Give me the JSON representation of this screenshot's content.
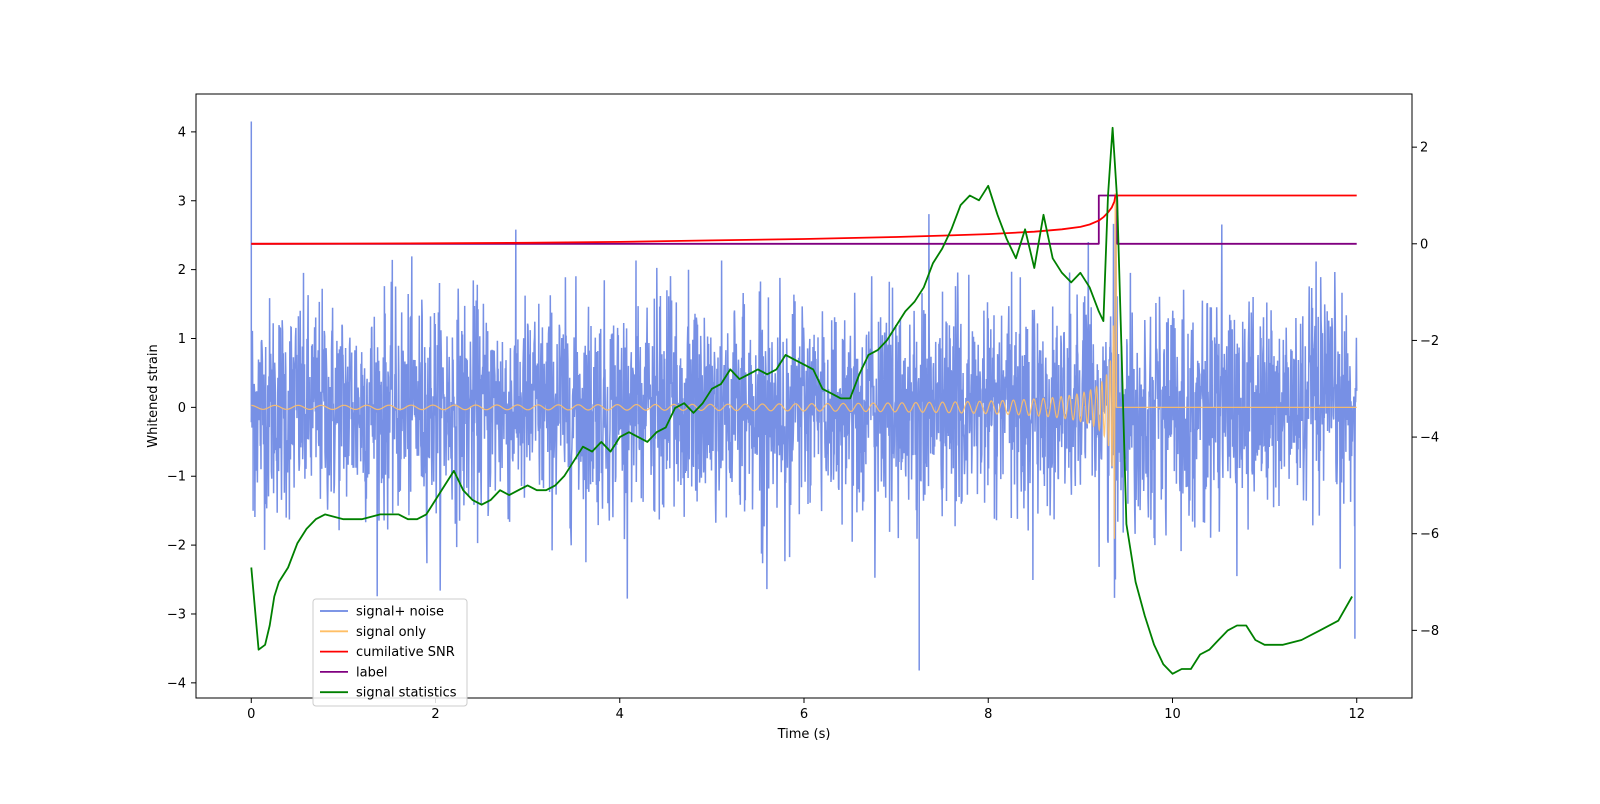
{
  "chart_data": {
    "type": "line",
    "title": "",
    "xlabel": "Time (s)",
    "ylabel": "Whitened strain",
    "y2label": "",
    "xlim": [
      -0.6,
      12.6
    ],
    "ylim": [
      -4.22,
      4.55
    ],
    "y2lim": [
      -9.4,
      3.1
    ],
    "x_ticks": [
      0,
      2,
      4,
      6,
      8,
      10,
      12
    ],
    "y_ticks": [
      -4,
      -3,
      -2,
      -1,
      0,
      1,
      2,
      3,
      4
    ],
    "y2_ticks": [
      -8,
      -6,
      -4,
      -2,
      0,
      2
    ],
    "grid": false,
    "legend_position": "lower-left",
    "colors": {
      "signal_noise": "#6b87e3",
      "signal_only": "#ffbf66",
      "cumulative_snr": "#ff0000",
      "label": "#800080",
      "signal_statistics": "#008000"
    },
    "series": [
      {
        "name": "signal+ noise",
        "axis": "left",
        "description_points": [
          [
            0.0,
            4.15
          ],
          [
            0.02,
            -1.5
          ],
          [
            7.25,
            -3.82
          ],
          [
            9.38,
            -2.5
          ],
          [
            11.98,
            -3.36
          ]
        ],
        "envelope": {
          "x_range": [
            0,
            12
          ],
          "typical_low": -1.9,
          "typical_high": 2.2,
          "sample_rate_hz": 256
        }
      },
      {
        "name": "signal only",
        "axis": "left",
        "chirp": {
          "start": 0,
          "merger_time": 9.38,
          "end": 12,
          "peak_amplitude_high": 3.1,
          "peak_amplitude_low": -2.55
        }
      },
      {
        "name": "cumilative SNR",
        "axis": "right",
        "x": [
          0,
          1,
          2,
          3,
          4,
          5,
          6,
          7,
          7.5,
          8,
          8.5,
          8.8,
          9.0,
          9.1,
          9.2,
          9.25,
          9.3,
          9.34,
          9.37,
          9.38,
          9.4,
          12
        ],
        "values": [
          0,
          0.004,
          0.01,
          0.02,
          0.04,
          0.07,
          0.1,
          0.14,
          0.17,
          0.2,
          0.25,
          0.3,
          0.35,
          0.4,
          0.48,
          0.55,
          0.65,
          0.75,
          0.88,
          1.0,
          1.0,
          1.0
        ]
      },
      {
        "name": "label",
        "axis": "right",
        "x": [
          0,
          9.2,
          9.2,
          9.4,
          9.4,
          12
        ],
        "values": [
          0,
          0,
          1,
          1,
          0,
          0
        ]
      },
      {
        "name": "signal statistics",
        "axis": "right",
        "x": [
          0.0,
          0.08,
          0.15,
          0.2,
          0.25,
          0.3,
          0.4,
          0.5,
          0.6,
          0.7,
          0.8,
          1.0,
          1.2,
          1.4,
          1.6,
          1.7,
          1.8,
          1.9,
          2.0,
          2.1,
          2.2,
          2.3,
          2.4,
          2.5,
          2.6,
          2.7,
          2.8,
          2.9,
          3.0,
          3.1,
          3.2,
          3.3,
          3.4,
          3.5,
          3.6,
          3.7,
          3.8,
          3.9,
          4.0,
          4.1,
          4.2,
          4.3,
          4.4,
          4.5,
          4.6,
          4.7,
          4.8,
          4.9,
          5.0,
          5.1,
          5.2,
          5.3,
          5.4,
          5.5,
          5.6,
          5.7,
          5.8,
          5.9,
          6.0,
          6.1,
          6.2,
          6.3,
          6.4,
          6.5,
          6.6,
          6.7,
          6.8,
          6.9,
          7.0,
          7.1,
          7.2,
          7.3,
          7.4,
          7.5,
          7.6,
          7.7,
          7.8,
          7.9,
          8.0,
          8.1,
          8.2,
          8.3,
          8.4,
          8.5,
          8.6,
          8.7,
          8.8,
          8.9,
          9.0,
          9.1,
          9.2,
          9.25,
          9.3,
          9.35,
          9.4,
          9.45,
          9.5,
          9.6,
          9.7,
          9.8,
          9.9,
          10.0,
          10.1,
          10.2,
          10.3,
          10.4,
          10.5,
          10.6,
          10.7,
          10.8,
          10.9,
          11.0,
          11.2,
          11.4,
          11.6,
          11.8,
          11.95
        ],
        "values": [
          -6.7,
          -8.4,
          -8.3,
          -7.9,
          -7.3,
          -7.0,
          -6.7,
          -6.2,
          -5.9,
          -5.7,
          -5.6,
          -5.7,
          -5.7,
          -5.6,
          -5.6,
          -5.7,
          -5.7,
          -5.6,
          -5.3,
          -5.0,
          -4.7,
          -5.1,
          -5.3,
          -5.4,
          -5.3,
          -5.1,
          -5.2,
          -5.1,
          -5.0,
          -5.1,
          -5.1,
          -5.0,
          -4.8,
          -4.5,
          -4.2,
          -4.3,
          -4.1,
          -4.3,
          -4.0,
          -3.9,
          -4.0,
          -4.1,
          -3.9,
          -3.8,
          -3.4,
          -3.3,
          -3.5,
          -3.3,
          -3.0,
          -2.9,
          -2.6,
          -2.8,
          -2.7,
          -2.6,
          -2.7,
          -2.6,
          -2.3,
          -2.4,
          -2.5,
          -2.6,
          -3.0,
          -3.1,
          -3.2,
          -3.2,
          -2.7,
          -2.3,
          -2.2,
          -2.0,
          -1.7,
          -1.4,
          -1.2,
          -0.9,
          -0.4,
          -0.1,
          0.3,
          0.8,
          1.0,
          0.9,
          1.2,
          0.6,
          0.1,
          -0.3,
          0.3,
          -0.5,
          0.6,
          -0.3,
          -0.6,
          -0.8,
          -0.6,
          -0.9,
          -1.4,
          -1.6,
          1.0,
          2.4,
          0.9,
          -2.4,
          -5.8,
          -7.0,
          -7.7,
          -8.3,
          -8.7,
          -8.9,
          -8.8,
          -8.8,
          -8.5,
          -8.4,
          -8.2,
          -8.0,
          -7.9,
          -7.9,
          -8.2,
          -8.3,
          -8.3,
          -8.2,
          -8.0,
          -7.8,
          -7.3
        ]
      }
    ]
  },
  "legend": {
    "items": [
      {
        "label": "signal+ noise",
        "color": "#6b87e3"
      },
      {
        "label": "signal only",
        "color": "#ffbf66"
      },
      {
        "label": "cumilative SNR",
        "color": "#ff0000"
      },
      {
        "label": "label",
        "color": "#800080"
      },
      {
        "label": "signal statistics",
        "color": "#008000"
      }
    ]
  }
}
